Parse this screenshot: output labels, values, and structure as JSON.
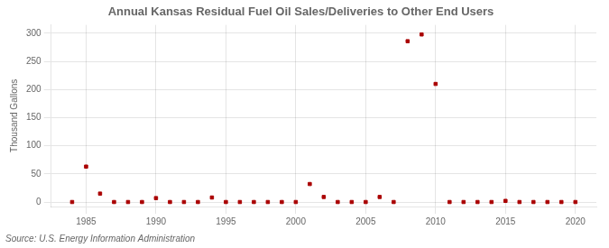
{
  "chart_data": {
    "type": "scatter",
    "title": "Annual Kansas Residual Fuel Oil Sales/Deliveries to Other End Users",
    "ylabel": "Thousand Gallons",
    "annotation": "Source: U.S. Energy Information Administration",
    "x": [
      1984,
      1985,
      1986,
      1987,
      1988,
      1989,
      1990,
      1991,
      1992,
      1993,
      1994,
      1995,
      1996,
      1997,
      1998,
      1999,
      2000,
      2001,
      2002,
      2003,
      2004,
      2005,
      2006,
      2007,
      2008,
      2009,
      2010,
      2011,
      2012,
      2013,
      2014,
      2015,
      2016,
      2017,
      2018,
      2019,
      2020
    ],
    "values": [
      0,
      63,
      15,
      0,
      0,
      0,
      7,
      0,
      0,
      0,
      8,
      0,
      0,
      0,
      0,
      0,
      0,
      32,
      9,
      0,
      0,
      0,
      9,
      0,
      286,
      298,
      210,
      0,
      0,
      0,
      0,
      2,
      0,
      0,
      0,
      0,
      0
    ],
    "color": "#aa0000",
    "marker": "square",
    "xlim": [
      1982.5,
      2021.5
    ],
    "xticks": [
      1985,
      1990,
      1995,
      2000,
      2005,
      2010,
      2015,
      2020
    ],
    "ylim": [
      -8,
      315
    ],
    "yticks": [
      0,
      50,
      100,
      150,
      200,
      250,
      300
    ],
    "grid": true
  }
}
